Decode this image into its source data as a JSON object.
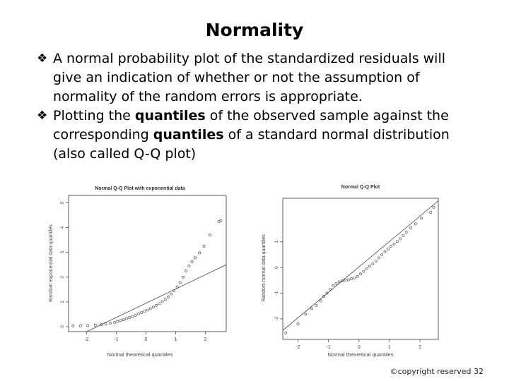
{
  "slide": {
    "title": "Normality",
    "bullet_icon": "diamond-four-point",
    "bullets": [
      {
        "parts": [
          {
            "text": "A normal probability plot of the standardized residuals will give an indication of whether or not the assumption of normality of the random errors is appropriate.",
            "bold": false
          }
        ]
      },
      {
        "parts": [
          {
            "text": " Plotting the ",
            "bold": false
          },
          {
            "text": "quantiles",
            "bold": true
          },
          {
            "text": " of the observed sample against the corresponding ",
            "bold": false
          },
          {
            "text": "quantiles",
            "bold": true
          },
          {
            "text": " of a standard normal distribution (also called Q-Q plot)",
            "bold": false
          }
        ]
      }
    ],
    "copyright": "©copyright reserved 32"
  },
  "chart_data": [
    {
      "type": "scatter",
      "title": "Normal Q-Q Plot with exponential data",
      "xlabel": "Normal theoretical quantiles",
      "ylabel": "Random exponential data quantiles",
      "xlim": [
        -2.6,
        2.7
      ],
      "ylim": [
        -0.2,
        5.3
      ],
      "xticks": [
        -2,
        -1,
        0,
        1,
        2
      ],
      "yticks": [
        0,
        1,
        2,
        3,
        4,
        5
      ],
      "reference_line": {
        "x": [
          -2.6,
          2.7
        ],
        "y": [
          -0.55,
          2.5
        ]
      },
      "points": [
        [
          -2.45,
          0.03
        ],
        [
          -2.2,
          0.03
        ],
        [
          -1.95,
          0.05
        ],
        [
          -1.7,
          0.06
        ],
        [
          -1.5,
          0.08
        ],
        [
          -1.35,
          0.11
        ],
        [
          -1.2,
          0.14
        ],
        [
          -1.05,
          0.17
        ],
        [
          -0.95,
          0.21
        ],
        [
          -0.85,
          0.25
        ],
        [
          -0.75,
          0.28
        ],
        [
          -0.65,
          0.33
        ],
        [
          -0.55,
          0.37
        ],
        [
          -0.45,
          0.41
        ],
        [
          -0.35,
          0.46
        ],
        [
          -0.25,
          0.52
        ],
        [
          -0.15,
          0.57
        ],
        [
          -0.05,
          0.62
        ],
        [
          0.05,
          0.67
        ],
        [
          0.15,
          0.73
        ],
        [
          0.25,
          0.79
        ],
        [
          0.35,
          0.86
        ],
        [
          0.45,
          0.93
        ],
        [
          0.55,
          1.01
        ],
        [
          0.65,
          1.1
        ],
        [
          0.75,
          1.2
        ],
        [
          0.85,
          1.32
        ],
        [
          0.95,
          1.45
        ],
        [
          1.05,
          1.6
        ],
        [
          1.15,
          1.78
        ],
        [
          1.25,
          2.0
        ],
        [
          1.35,
          2.25
        ],
        [
          1.45,
          2.45
        ],
        [
          1.55,
          2.62
        ],
        [
          1.65,
          2.78
        ],
        [
          1.8,
          2.98
        ],
        [
          1.95,
          3.25
        ],
        [
          2.15,
          3.7
        ],
        [
          2.45,
          4.25
        ],
        [
          2.52,
          4.28
        ]
      ]
    },
    {
      "type": "scatter",
      "title": "Normal Q-Q Plot",
      "xlabel": "Normal theoretical quantiles",
      "ylabel": "Random normal data quantiles",
      "xlim": [
        -2.5,
        2.6
      ],
      "ylim": [
        -2.8,
        2.7
      ],
      "xticks": [
        -2,
        -1,
        0,
        1,
        2
      ],
      "yticks": [
        -2,
        -1,
        0,
        1
      ],
      "reference_line": {
        "x": [
          -2.5,
          2.6
        ],
        "y": [
          -2.45,
          2.6
        ]
      },
      "points": [
        [
          -2.4,
          -2.55
        ],
        [
          -2.0,
          -2.2
        ],
        [
          -1.75,
          -1.82
        ],
        [
          -1.55,
          -1.6
        ],
        [
          -1.4,
          -1.48
        ],
        [
          -1.25,
          -1.3
        ],
        [
          -1.15,
          -1.12
        ],
        [
          -1.05,
          -1.0
        ],
        [
          -0.95,
          -0.85
        ],
        [
          -0.85,
          -0.7
        ],
        [
          -0.75,
          -0.62
        ],
        [
          -0.65,
          -0.56
        ],
        [
          -0.55,
          -0.52
        ],
        [
          -0.45,
          -0.5
        ],
        [
          -0.35,
          -0.48
        ],
        [
          -0.25,
          -0.44
        ],
        [
          -0.15,
          -0.4
        ],
        [
          -0.05,
          -0.35
        ],
        [
          0.05,
          -0.25
        ],
        [
          0.15,
          -0.15
        ],
        [
          0.25,
          -0.05
        ],
        [
          0.35,
          0.05
        ],
        [
          0.45,
          0.14
        ],
        [
          0.55,
          0.25
        ],
        [
          0.65,
          0.38
        ],
        [
          0.75,
          0.5
        ],
        [
          0.85,
          0.62
        ],
        [
          0.95,
          0.72
        ],
        [
          1.05,
          0.83
        ],
        [
          1.15,
          0.92
        ],
        [
          1.25,
          1.02
        ],
        [
          1.35,
          1.12
        ],
        [
          1.45,
          1.25
        ],
        [
          1.55,
          1.38
        ],
        [
          1.7,
          1.55
        ],
        [
          1.85,
          1.7
        ],
        [
          2.05,
          1.92
        ],
        [
          2.35,
          2.15
        ],
        [
          2.45,
          2.35
        ]
      ]
    }
  ]
}
